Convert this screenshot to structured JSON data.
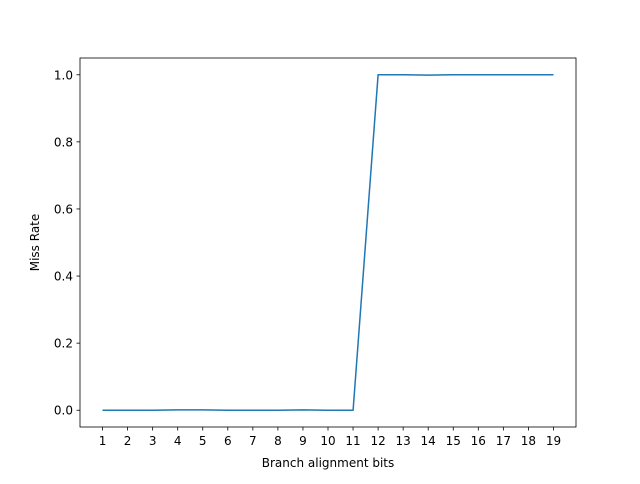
{
  "chart_data": {
    "type": "line",
    "title": "",
    "xlabel": "Branch alignment bits",
    "ylabel": "Miss Rate",
    "x": [
      1,
      2,
      3,
      4,
      5,
      6,
      7,
      8,
      9,
      10,
      11,
      12,
      13,
      14,
      15,
      16,
      17,
      18,
      19
    ],
    "series": [
      {
        "color": "#1f77b4",
        "values": [
          0.0,
          0.0,
          0.0,
          0.001,
          0.001,
          0.0,
          0.0,
          0.0,
          0.001,
          0.0,
          0.0,
          1.0,
          1.0,
          0.999,
          1.0,
          1.0,
          1.0,
          1.0,
          1.0
        ]
      }
    ],
    "xticks": [
      "1",
      "2",
      "3",
      "4",
      "5",
      "6",
      "7",
      "8",
      "9",
      "10",
      "11",
      "12",
      "13",
      "14",
      "15",
      "16",
      "17",
      "18",
      "19"
    ],
    "yticks": [
      "0.0",
      "0.2",
      "0.4",
      "0.6",
      "0.8",
      "1.0"
    ],
    "xlim": [
      0.1,
      19.9
    ],
    "ylim": [
      -0.05,
      1.05
    ],
    "grid": false
  }
}
